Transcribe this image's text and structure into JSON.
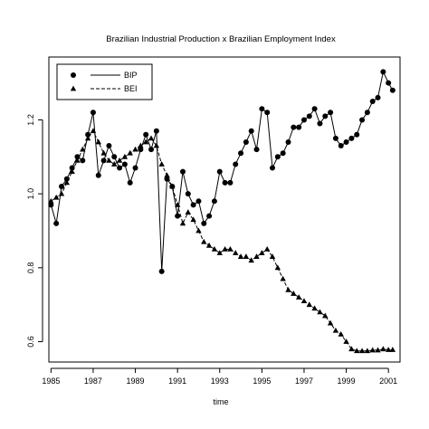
{
  "chart_data": {
    "type": "line",
    "title": "Brazilian Industrial Production x Brazilian Employment Index",
    "xlabel": "time",
    "ylabel": "",
    "xlim": [
      1984.9,
      2001.55
    ],
    "ylim": [
      0.545,
      1.37
    ],
    "x_ticks": [
      1985,
      1987,
      1989,
      1991,
      1993,
      1995,
      1997,
      1999,
      2001
    ],
    "x_tick_labels": [
      "1985",
      "1987",
      "1989",
      "1991",
      "1993",
      "1995",
      "1997",
      "1999",
      "2001"
    ],
    "y_ticks": [
      0.6,
      0.8,
      1.0,
      1.2
    ],
    "y_tick_labels": [
      "0.6",
      "0.8",
      "1.0",
      "1.2"
    ],
    "grid": false,
    "legend_position": "top-left",
    "series": [
      {
        "name": "BIP",
        "line_style": "solid",
        "marker": "circle",
        "x": [
          1985.0,
          1985.25,
          1985.5,
          1985.75,
          1986.0,
          1986.25,
          1986.5,
          1986.75,
          1987.0,
          1987.25,
          1987.5,
          1987.75,
          1988.0,
          1988.25,
          1988.5,
          1988.75,
          1989.0,
          1989.25,
          1989.5,
          1989.75,
          1990.0,
          1990.25,
          1990.5,
          1990.75,
          1991.0,
          1991.25,
          1991.5,
          1991.75,
          1992.0,
          1992.25,
          1992.5,
          1992.75,
          1993.0,
          1993.25,
          1993.5,
          1993.75,
          1994.0,
          1994.25,
          1994.5,
          1994.75,
          1995.0,
          1995.25,
          1995.5,
          1995.75,
          1996.0,
          1996.25,
          1996.5,
          1996.75,
          1997.0,
          1997.25,
          1997.5,
          1997.75,
          1998.0,
          1998.25,
          1998.5,
          1998.75,
          1999.0,
          1999.25,
          1999.5,
          1999.75,
          2000.0,
          2000.25,
          2000.5,
          2000.75,
          2001.0,
          2001.2
        ],
        "values": [
          0.97,
          0.92,
          1.02,
          1.04,
          1.07,
          1.1,
          1.09,
          1.16,
          1.22,
          1.05,
          1.09,
          1.13,
          1.1,
          1.07,
          1.08,
          1.03,
          1.07,
          1.12,
          1.16,
          1.12,
          1.17,
          0.79,
          1.04,
          1.02,
          0.94,
          1.06,
          1.0,
          0.97,
          0.98,
          0.92,
          0.94,
          0.98,
          1.06,
          1.03,
          1.03,
          1.08,
          1.11,
          1.14,
          1.17,
          1.12,
          1.23,
          1.22,
          1.07,
          1.1,
          1.11,
          1.14,
          1.18,
          1.18,
          1.2,
          1.21,
          1.23,
          1.19,
          1.21,
          1.22,
          1.15,
          1.13,
          1.14,
          1.15,
          1.16,
          1.2,
          1.22,
          1.25,
          1.26,
          1.33,
          1.3,
          1.28
        ]
      },
      {
        "name": "BEI",
        "line_style": "dashed",
        "marker": "triangle",
        "x": [
          1985.0,
          1985.25,
          1985.5,
          1985.75,
          1986.0,
          1986.25,
          1986.5,
          1986.75,
          1987.0,
          1987.25,
          1987.5,
          1987.75,
          1988.0,
          1988.25,
          1988.5,
          1988.75,
          1989.0,
          1989.25,
          1989.5,
          1989.75,
          1990.0,
          1990.25,
          1990.5,
          1990.75,
          1991.0,
          1991.25,
          1991.5,
          1991.75,
          1992.0,
          1992.25,
          1992.5,
          1992.75,
          1993.0,
          1993.25,
          1993.5,
          1993.75,
          1994.0,
          1994.25,
          1994.5,
          1994.75,
          1995.0,
          1995.25,
          1995.5,
          1995.75,
          1996.0,
          1996.25,
          1996.5,
          1996.75,
          1997.0,
          1997.25,
          1997.5,
          1997.75,
          1998.0,
          1998.25,
          1998.5,
          1998.75,
          1999.0,
          1999.25,
          1999.5,
          1999.75,
          2000.0,
          2000.25,
          2000.5,
          2000.75,
          2001.0,
          2001.2
        ],
        "values": [
          0.98,
          0.99,
          1.0,
          1.03,
          1.06,
          1.09,
          1.12,
          1.15,
          1.17,
          1.14,
          1.11,
          1.09,
          1.08,
          1.09,
          1.1,
          1.11,
          1.12,
          1.13,
          1.14,
          1.15,
          1.13,
          1.08,
          1.05,
          1.02,
          0.97,
          0.92,
          0.95,
          0.93,
          0.9,
          0.87,
          0.86,
          0.85,
          0.84,
          0.85,
          0.85,
          0.84,
          0.83,
          0.83,
          0.82,
          0.83,
          0.84,
          0.85,
          0.83,
          0.8,
          0.77,
          0.74,
          0.73,
          0.72,
          0.71,
          0.7,
          0.69,
          0.68,
          0.67,
          0.65,
          0.63,
          0.62,
          0.6,
          0.58,
          0.575,
          0.575,
          0.575,
          0.577,
          0.577,
          0.58,
          0.578,
          0.578
        ]
      }
    ]
  }
}
